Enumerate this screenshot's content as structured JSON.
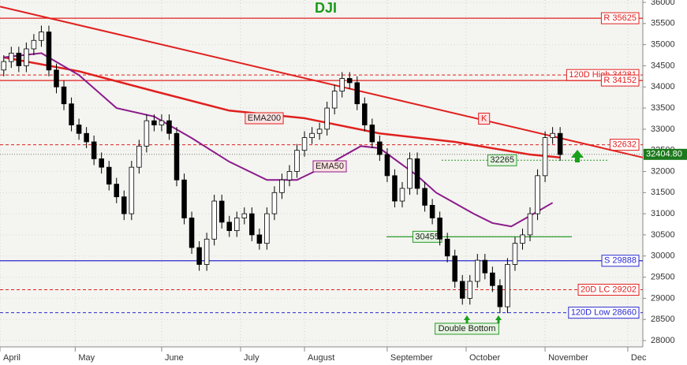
{
  "chart_data": {
    "type": "candlestick",
    "title": "DJI",
    "x": [
      0,
      2,
      4,
      6,
      8,
      10,
      12,
      14,
      16,
      18,
      20,
      22,
      24,
      26,
      28,
      30,
      32,
      34,
      36,
      38,
      40,
      42,
      44,
      46,
      48,
      50,
      52,
      54,
      56,
      58,
      60,
      62,
      64,
      66,
      68,
      70,
      72,
      74,
      76,
      78,
      80,
      82,
      84,
      86,
      88,
      90,
      92,
      94,
      96,
      98,
      100,
      102,
      104,
      106,
      108,
      110,
      112,
      114,
      116,
      118,
      120,
      122,
      124,
      126,
      128,
      130,
      132,
      134,
      136,
      138,
      140,
      142,
      144,
      146,
      148
    ],
    "open": [
      34400,
      34600,
      34800,
      34500,
      34900,
      35100,
      35300,
      34400,
      34000,
      33600,
      33100,
      32900,
      32700,
      32300,
      32100,
      31700,
      31400,
      31000,
      32100,
      32600,
      33200,
      33100,
      33200,
      32900,
      31800,
      30900,
      30200,
      29800,
      30400,
      31300,
      30800,
      30600,
      30900,
      31000,
      30500,
      30300,
      31000,
      31500,
      31800,
      32000,
      32500,
      32800,
      32900,
      33000,
      33500,
      33900,
      34200,
      34100,
      33600,
      33100,
      32700,
      32400,
      31900,
      31300,
      31600,
      32300,
      31600,
      31200,
      30900,
      30400,
      30000,
      29400,
      29000,
      29400,
      29900,
      29600,
      29300,
      28800,
      29800,
      30300,
      30500,
      31000,
      31900,
      32800,
      32900
    ],
    "high": [
      34750,
      34950,
      34950,
      35050,
      35250,
      35450,
      35450,
      34550,
      34150,
      33750,
      33250,
      33050,
      32850,
      32450,
      32250,
      31850,
      31550,
      32250,
      32750,
      33350,
      33350,
      33350,
      33350,
      33050,
      31950,
      31050,
      30350,
      30550,
      31450,
      31450,
      30950,
      31050,
      31150,
      31150,
      30650,
      31150,
      31650,
      31950,
      32150,
      32650,
      32950,
      33050,
      33150,
      33650,
      34050,
      34350,
      34350,
      34250,
      33750,
      33250,
      32850,
      32550,
      32050,
      31750,
      32450,
      32450,
      31750,
      31350,
      31050,
      30550,
      30150,
      29550,
      29550,
      30050,
      30050,
      29750,
      29450,
      29950,
      30450,
      30650,
      31150,
      32050,
      32950,
      33050,
      33050
    ],
    "low": [
      34250,
      34450,
      34350,
      34350,
      34750,
      34950,
      34250,
      33850,
      33450,
      32950,
      32750,
      32550,
      32150,
      31950,
      31550,
      31250,
      30850,
      30850,
      31950,
      32450,
      32950,
      32950,
      32750,
      31650,
      30750,
      30050,
      29650,
      29650,
      30250,
      30650,
      30450,
      30450,
      30750,
      30350,
      30150,
      30150,
      30850,
      31350,
      31650,
      31850,
      32350,
      32650,
      32750,
      32850,
      33350,
      33750,
      33950,
      33450,
      32950,
      32550,
      32250,
      31750,
      31150,
      31150,
      31450,
      31450,
      31050,
      30750,
      30250,
      29850,
      29250,
      28850,
      28850,
      29250,
      29450,
      29150,
      28650,
      28650,
      29650,
      30150,
      30350,
      30850,
      31750,
      32650,
      32250
    ],
    "close": [
      34600,
      34800,
      34500,
      34900,
      35100,
      35300,
      34400,
      34000,
      33600,
      33100,
      32900,
      32700,
      32300,
      32100,
      31700,
      31400,
      31000,
      32100,
      32600,
      33200,
      33100,
      33200,
      32900,
      31800,
      30900,
      30200,
      29800,
      30400,
      31300,
      30800,
      30600,
      30900,
      31000,
      30500,
      30300,
      31000,
      31500,
      31800,
      32000,
      32500,
      32800,
      32900,
      33000,
      33500,
      33900,
      34200,
      34100,
      33600,
      33100,
      32700,
      32400,
      31900,
      31300,
      31600,
      32300,
      31600,
      31200,
      30900,
      30400,
      30000,
      29400,
      29000,
      29400,
      29900,
      29600,
      29300,
      28800,
      29800,
      30300,
      30500,
      31000,
      31900,
      32800,
      32900,
      32400
    ],
    "up_color": "#ffffff",
    "down_color": "#000000",
    "series": [
      {
        "name": "EMA200",
        "color": "#e0201e",
        "x": [
          0,
          20,
          40,
          60,
          80,
          100,
          120,
          140,
          148
        ],
        "values": [
          34700,
          34370,
          33900,
          33440,
          33260,
          32900,
          32700,
          32400,
          32330
        ]
      },
      {
        "name": "EMA50",
        "color": "#8b1a8b",
        "x": [
          0,
          10,
          20,
          30,
          40,
          50,
          60,
          70,
          78,
          85,
          95,
          100,
          110,
          115,
          125,
          130,
          135,
          140,
          146
        ],
        "values": [
          34700,
          34800,
          34280,
          33500,
          33300,
          32790,
          32230,
          31800,
          31800,
          32100,
          32600,
          32550,
          31900,
          31500,
          31000,
          30780,
          30700,
          30950,
          31260
        ]
      }
    ],
    "trendline": {
      "name": "K",
      "color": "#e0201e",
      "x": [
        -1,
        170
      ],
      "values": [
        35900,
        32330
      ]
    },
    "levels": [
      {
        "label": "R 35625",
        "value": 35625,
        "color": "#e0201e",
        "style": "solid"
      },
      {
        "label": "120D High 34281",
        "value": 34281,
        "color": "#e0201e",
        "style": "dashed"
      },
      {
        "label": "R 34152",
        "value": 34152,
        "color": "#e0201e",
        "style": "solid"
      },
      {
        "label": "32632",
        "value": 32632,
        "color": "#e0201e",
        "style": "dashed"
      },
      {
        "label": "32265",
        "value": 32265,
        "color": "#2a9a2a",
        "style": "dotted"
      },
      {
        "label": "30455",
        "value": 30455,
        "color": "#2a9a2a",
        "style": "solid"
      },
      {
        "label": "S 29888",
        "value": 29888,
        "color": "#2a2ad0",
        "style": "solid"
      },
      {
        "label": "20D LC 29202",
        "value": 29202,
        "color": "#e0201e",
        "style": "dashed"
      },
      {
        "label": "120D Low 28660",
        "value": 28660,
        "color": "#2a2ad0",
        "style": "dashed"
      }
    ],
    "last_price": {
      "value": 32404.8,
      "label": "32404.80"
    },
    "annotation": "Double Bottom",
    "xlim": [
      -1,
      170
    ],
    "ylim": [
      28000,
      36000
    ],
    "xticks": [
      {
        "value": -1,
        "label": "April"
      },
      {
        "value": 19,
        "label": "May"
      },
      {
        "value": 42,
        "label": "June"
      },
      {
        "value": 63,
        "label": "July"
      },
      {
        "value": 80,
        "label": "August"
      },
      {
        "value": 102,
        "label": "September"
      },
      {
        "value": 123,
        "label": "October"
      },
      {
        "value": 144,
        "label": "November"
      },
      {
        "value": 166,
        "label": "Dec"
      }
    ],
    "yticks": [
      28000,
      28500,
      29000,
      29500,
      30000,
      30500,
      31000,
      31500,
      32000,
      32500,
      33000,
      33500,
      34000,
      34500,
      35000,
      35500,
      36000
    ],
    "grid": true
  }
}
